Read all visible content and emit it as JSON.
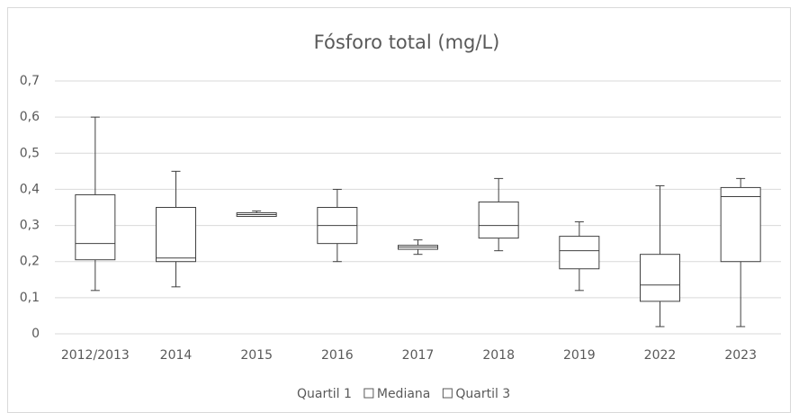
{
  "chart_data": {
    "type": "box",
    "title": "Fósforo total (mg/L)",
    "categories": [
      "2012/2013",
      "2014",
      "2015",
      "2016",
      "2017",
      "2018",
      "2019",
      "2022",
      "2023"
    ],
    "min": [
      0.12,
      0.13,
      0.325,
      0.2,
      0.22,
      0.23,
      0.12,
      0.02,
      0.02
    ],
    "q1": [
      0.205,
      0.2,
      0.325,
      0.25,
      0.234,
      0.265,
      0.18,
      0.09,
      0.2
    ],
    "median": [
      0.25,
      0.21,
      0.33,
      0.3,
      0.24,
      0.3,
      0.23,
      0.135,
      0.38
    ],
    "q3": [
      0.385,
      0.35,
      0.335,
      0.35,
      0.245,
      0.365,
      0.27,
      0.22,
      0.405
    ],
    "max": [
      0.6,
      0.45,
      0.34,
      0.4,
      0.26,
      0.43,
      0.31,
      0.41,
      0.43
    ],
    "legend": [
      "Quartil 1",
      "Mediana",
      "Quartil 3"
    ],
    "color": "#ffffff",
    "stroke": "#404040",
    "ylim": [
      0,
      0.7
    ],
    "yticks": [
      0,
      {
        "value": 0.1,
        "label": "0,1"
      },
      {
        "value": 0.2,
        "label": "0,2"
      },
      {
        "value": 0.3,
        "label": "0,3"
      },
      {
        "value": 0.4,
        "label": "0,4"
      },
      {
        "value": 0.5,
        "label": "0,5"
      },
      {
        "value": 0.6,
        "label": "0,6"
      },
      {
        "value": 0.7,
        "label": "0,7"
      }
    ],
    "grid": true
  }
}
